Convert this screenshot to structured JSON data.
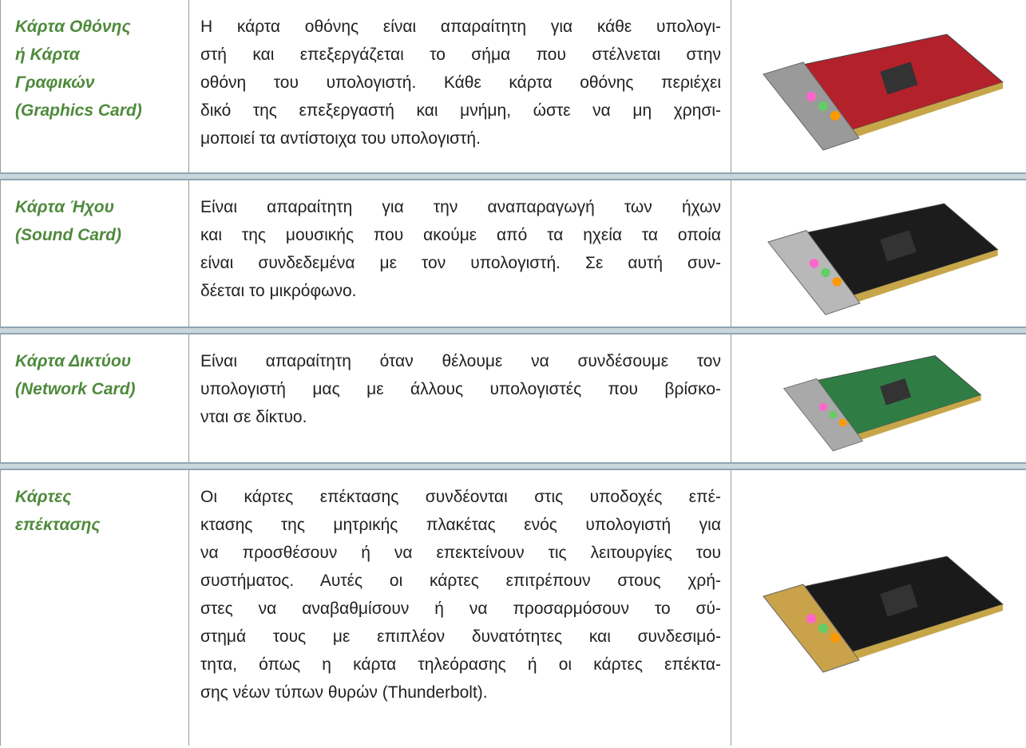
{
  "rows": [
    {
      "term": [
        "Κάρτα Οθόνης",
        "ή Κάρτα",
        "Γραφικών",
        "(Graphics Card)"
      ],
      "description": [
        "Η κάρτα οθόνης είναι απαραίτητη για κάθε υπολογι-",
        "στή και επεξεργάζεται το σήμα που στέλνεται στην",
        "οθόνη του υπολογιστή. Κάθε κάρτα οθόνης περιέχει",
        "δικό της επεξεργαστή και μνήμη, ώστε να μη χρησι-",
        "μοποιεί τα αντίστοιχα του υπολογιστή."
      ]
    },
    {
      "term": [
        "Κάρτα Ήχου",
        "(Sound Card)"
      ],
      "description": [
        "Είναι απαραίτητη για την αναπαραγωγή των ήχων",
        "και της μουσικής που ακούμε από τα ηχεία τα οποία",
        "είναι συνδεδεμένα με τον υπολογιστή. Σε αυτή συν-",
        "δέεται το μικρόφωνο."
      ]
    },
    {
      "term": [
        "Κάρτα Δικτύου",
        "(Network Card)"
      ],
      "description": [
        "Είναι απαραίτητη όταν θέλουμε να συνδέσουμε τον",
        "υπολογιστή μας με άλλους υπολογιστές που βρίσκο-",
        "νται σε δίκτυο."
      ]
    },
    {
      "term": [
        "Κάρτες",
        "επέκτασης"
      ],
      "description": [
        "Οι κάρτες επέκτασης συνδέονται στις υποδοχές επέ-",
        "κτασης της μητρικής πλακέτας ενός υπολογιστή για",
        "να προσθέσουν ή να επεκτείνουν τις λειτουργίες του",
        "συστήματος. Αυτές οι κάρτες επιτρέπουν στους χρή-",
        "στες να αναβαθμίσουν ή να προσαρμόσουν το σύ-",
        "στημά τους με επιπλέον δυνατότητες και συνδεσιμό-",
        "τητα, όπως η κάρτα τηλεόρασης ή οι κάρτες επέκτα-",
        "σης νέων τύπων θυρών (Thunderbolt)."
      ]
    }
  ]
}
